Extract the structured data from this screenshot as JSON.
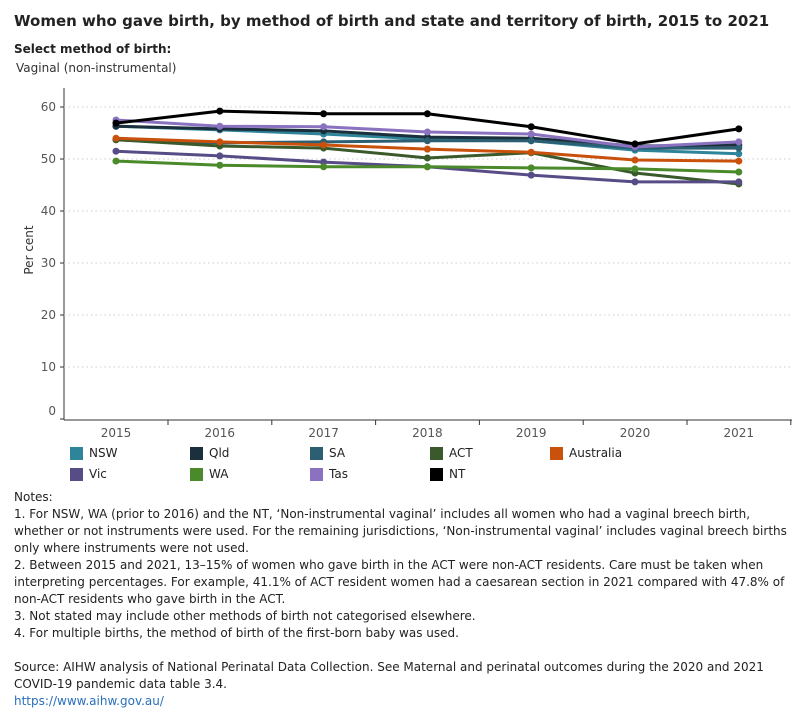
{
  "title": "Women who gave birth, by method of birth and state and territory of birth, 2015 to 2021",
  "filter": {
    "label": "Select method of birth:",
    "value": "Vaginal (non-instrumental)"
  },
  "chart_data": {
    "type": "line",
    "ylabel": "Per cent",
    "ylim": [
      0,
      60
    ],
    "yticks": [
      "0",
      "10",
      "20",
      "30",
      "40",
      "50",
      "60"
    ],
    "categories": [
      "2015",
      "2016",
      "2017",
      "2018",
      "2019",
      "2020",
      "2021"
    ],
    "grid": true,
    "legend_position": "bottom",
    "series": [
      {
        "name": "NSW",
        "color": "#2e8599",
        "values": [
          56.3,
          55.6,
          54.8,
          53.8,
          53.5,
          51.7,
          51.0
        ]
      },
      {
        "name": "Qld",
        "color": "#1b2f3d",
        "values": [
          56.3,
          55.8,
          55.4,
          54.2,
          54.0,
          52.5,
          52.7
        ]
      },
      {
        "name": "SA",
        "color": "#2d5f73",
        "values": [
          53.7,
          53.1,
          53.3,
          53.5,
          53.5,
          52.1,
          52.1
        ]
      },
      {
        "name": "ACT",
        "color": "#3b5a2b",
        "values": [
          53.7,
          52.5,
          52.1,
          50.2,
          51.2,
          47.3,
          45.2
        ]
      },
      {
        "name": "Australia",
        "color": "#c9510c",
        "values": [
          54.0,
          53.3,
          52.7,
          51.9,
          51.3,
          49.8,
          49.6
        ]
      },
      {
        "name": "Vic",
        "color": "#574c86",
        "values": [
          51.5,
          50.6,
          49.4,
          48.5,
          46.9,
          45.6,
          45.6
        ]
      },
      {
        "name": "WA",
        "color": "#4b8a2b",
        "values": [
          49.6,
          48.8,
          48.5,
          48.5,
          48.3,
          48.1,
          47.5
        ]
      },
      {
        "name": "Tas",
        "color": "#8a72c0",
        "values": [
          57.5,
          56.3,
          56.2,
          55.2,
          54.8,
          52.3,
          53.3
        ]
      },
      {
        "name": "NT",
        "color": "#000000",
        "values": [
          56.9,
          59.2,
          58.7,
          58.7,
          56.2,
          52.9,
          55.8
        ]
      }
    ]
  },
  "notes": {
    "heading": "Notes:",
    "items": [
      "1. For NSW, WA (prior to 2016) and the NT, ‘Non-instrumental vaginal’ includes all women who had a vaginal breech birth, whether or not instruments were used. For the remaining jurisdictions, ‘Non-instrumental vaginal’ includes vaginal breech births only where instruments were not used.",
      "2. Between 2015 and 2021, 13–15% of women who gave birth in the ACT were non-ACT residents. Care must be taken when interpreting percentages. For example, 41.1% of ACT resident women had a caesarean section in 2021 compared with 47.8% of non-ACT residents who gave birth in the ACT.",
      "3. Not stated may include other methods of birth not categorised elsewhere.",
      "4. For multiple births, the method of birth of the first-born baby was used."
    ],
    "source": "Source: AIHW analysis of National Perinatal Data Collection. See Maternal and perinatal outcomes during the 2020 and 2021 COVID-19 pandemic data table 3.4.",
    "link": "https://www.aihw.gov.au/"
  }
}
